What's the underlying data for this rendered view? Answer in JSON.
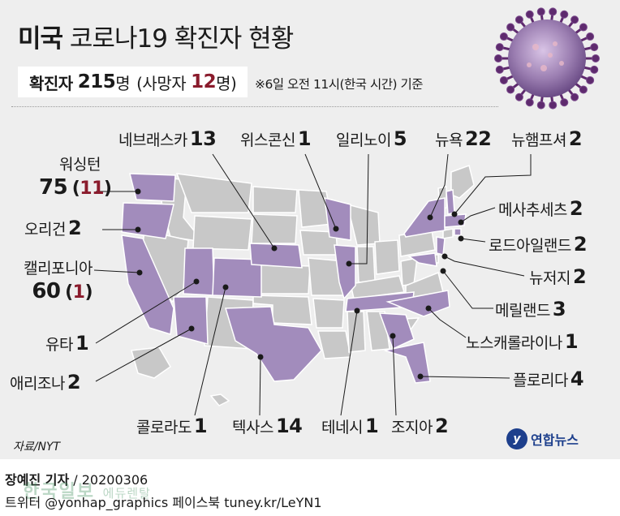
{
  "header": {
    "title_bold": "미국",
    "title_rest": "코로나19 확진자 현황",
    "summary_label": "확진자",
    "summary_count": "215",
    "summary_unit": "명",
    "summary_death_open": "(사망자",
    "summary_death_count": "12",
    "summary_death_close": "명)",
    "note": "※6일 오전 11시(한국 시간) 기준"
  },
  "colors": {
    "affected": "#a28cbc",
    "unaffected": "#c8c8c8",
    "border": "#ffffff",
    "panel": "#eeeeee",
    "death_red": "#8a1b2c"
  },
  "states": [
    {
      "name": "워싱턴",
      "cases": "75",
      "deaths": "11"
    },
    {
      "name": "오리건",
      "cases": "2"
    },
    {
      "name": "캘리포니아",
      "cases": "60",
      "deaths": "1"
    },
    {
      "name": "유타",
      "cases": "1"
    },
    {
      "name": "애리조나",
      "cases": "2"
    },
    {
      "name": "콜로라도",
      "cases": "1"
    },
    {
      "name": "텍사스",
      "cases": "14"
    },
    {
      "name": "네브래스카",
      "cases": "13"
    },
    {
      "name": "위스콘신",
      "cases": "1"
    },
    {
      "name": "일리노이",
      "cases": "5"
    },
    {
      "name": "테네시",
      "cases": "1"
    },
    {
      "name": "조지아",
      "cases": "2"
    },
    {
      "name": "플로리다",
      "cases": "4"
    },
    {
      "name": "노스캐롤라이나",
      "cases": "1"
    },
    {
      "name": "메릴랜드",
      "cases": "3"
    },
    {
      "name": "뉴저지",
      "cases": "2"
    },
    {
      "name": "로드아일랜드",
      "cases": "2"
    },
    {
      "name": "메사추세츠",
      "cases": "2"
    },
    {
      "name": "뉴욕",
      "cases": "22"
    },
    {
      "name": "뉴햄프셔",
      "cases": "2"
    }
  ],
  "footer": {
    "source": "자료/NYT",
    "logo_text": "연합뉴스",
    "logo_mark": "y",
    "reporter_name": "장예진 기자",
    "reporter_date": " / 20200306",
    "social": "트위터 @yonhap_graphics  페이스북 tuney.kr/LeYN1",
    "watermark_main": "한국일보",
    "watermark_sub": "에듀렌탈"
  }
}
